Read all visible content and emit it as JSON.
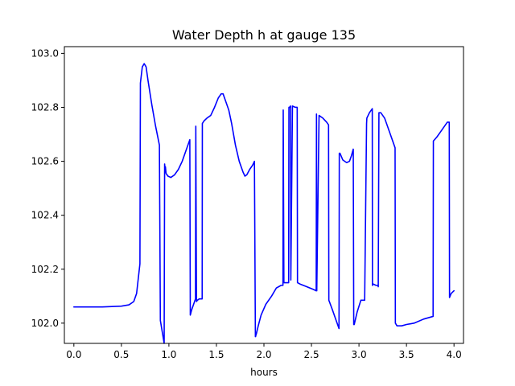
{
  "chart_data": {
    "type": "line",
    "title": "Water Depth h at gauge 135",
    "xlabel": "hours",
    "ylabel": "",
    "xlim": [
      -0.1,
      4.1
    ],
    "ylim": [
      101.925,
      103.025
    ],
    "xticks": [
      0.0,
      0.5,
      1.0,
      1.5,
      2.0,
      2.5,
      3.0,
      3.5,
      4.0
    ],
    "xtick_labels": [
      "0.0",
      "0.5",
      "1.0",
      "1.5",
      "2.0",
      "2.5",
      "3.0",
      "3.5",
      "4.0"
    ],
    "yticks": [
      102.0,
      102.2,
      102.4,
      102.6,
      102.8,
      103.0
    ],
    "ytick_labels": [
      "102.0",
      "102.2",
      "102.4",
      "102.6",
      "102.8",
      "103.0"
    ],
    "grid": false,
    "series": [
      {
        "color": "#0000ff",
        "x": [
          0.0,
          0.3,
          0.5,
          0.58,
          0.63,
          0.66,
          0.695,
          0.7,
          0.72,
          0.74,
          0.76,
          0.78,
          0.82,
          0.86,
          0.9,
          0.91,
          0.95,
          0.955,
          0.96,
          0.963,
          0.97,
          0.99,
          1.02,
          1.06,
          1.1,
          1.14,
          1.18,
          1.22,
          1.225,
          1.24,
          1.27,
          1.28,
          1.283,
          1.29,
          1.3,
          1.32,
          1.35,
          1.352,
          1.37,
          1.4,
          1.44,
          1.48,
          1.52,
          1.55,
          1.57,
          1.6,
          1.63,
          1.66,
          1.7,
          1.74,
          1.78,
          1.8,
          1.82,
          1.85,
          1.88,
          1.9,
          1.91,
          1.912,
          1.915,
          1.92,
          1.94,
          1.97,
          2.02,
          2.08,
          2.13,
          2.18,
          2.2,
          2.203,
          2.21,
          2.26,
          2.263,
          2.27,
          2.28,
          2.283,
          2.3,
          2.33,
          2.35,
          2.353,
          2.38,
          2.45,
          2.52,
          2.55,
          2.553,
          2.556,
          2.58,
          2.62,
          2.66,
          2.68,
          2.683,
          2.72,
          2.76,
          2.79,
          2.793,
          2.8,
          2.83,
          2.87,
          2.9,
          2.92,
          2.94,
          2.945,
          2.95,
          2.98,
          3.02,
          3.06,
          3.08,
          3.083,
          3.11,
          3.14,
          3.142,
          3.15,
          3.18,
          3.2,
          3.203,
          3.21,
          3.23,
          3.27,
          3.32,
          3.37,
          3.38,
          3.383,
          3.4,
          3.45,
          3.5,
          3.58,
          3.68,
          3.78,
          3.783,
          3.82,
          3.86,
          3.9,
          3.93,
          3.95,
          3.953,
          3.97,
          4.0
        ],
        "y": [
          102.06,
          102.06,
          102.063,
          102.068,
          102.08,
          102.11,
          102.22,
          102.89,
          102.95,
          102.962,
          102.95,
          102.9,
          102.81,
          102.73,
          102.66,
          102.01,
          101.925,
          102.59,
          102.56,
          102.58,
          102.555,
          102.545,
          102.54,
          102.55,
          102.57,
          102.6,
          102.64,
          102.68,
          102.03,
          102.05,
          102.08,
          102.09,
          102.73,
          102.08,
          102.085,
          102.09,
          102.09,
          102.74,
          102.75,
          102.76,
          102.77,
          102.8,
          102.835,
          102.85,
          102.85,
          102.82,
          102.79,
          102.74,
          102.66,
          102.6,
          102.56,
          102.545,
          102.55,
          102.57,
          102.585,
          102.6,
          101.95,
          101.95,
          101.955,
          101.96,
          101.99,
          102.03,
          102.07,
          102.1,
          102.13,
          102.14,
          102.14,
          102.79,
          102.15,
          102.15,
          102.8,
          102.8,
          102.805,
          102.16,
          102.805,
          102.8,
          102.8,
          102.15,
          102.145,
          102.135,
          102.125,
          102.12,
          102.775,
          102.12,
          102.77,
          102.76,
          102.745,
          102.735,
          102.085,
          102.05,
          102.01,
          101.98,
          102.63,
          102.63,
          102.605,
          102.595,
          102.6,
          102.62,
          102.645,
          101.995,
          101.995,
          102.04,
          102.085,
          102.085,
          102.74,
          102.76,
          102.78,
          102.795,
          102.14,
          102.145,
          102.14,
          102.14,
          102.135,
          102.78,
          102.78,
          102.76,
          102.71,
          102.66,
          102.65,
          102.0,
          101.99,
          101.99,
          101.995,
          102.0,
          102.015,
          102.025,
          102.675,
          102.69,
          102.71,
          102.73,
          102.745,
          102.745,
          102.095,
          102.11,
          102.12
        ]
      }
    ]
  }
}
